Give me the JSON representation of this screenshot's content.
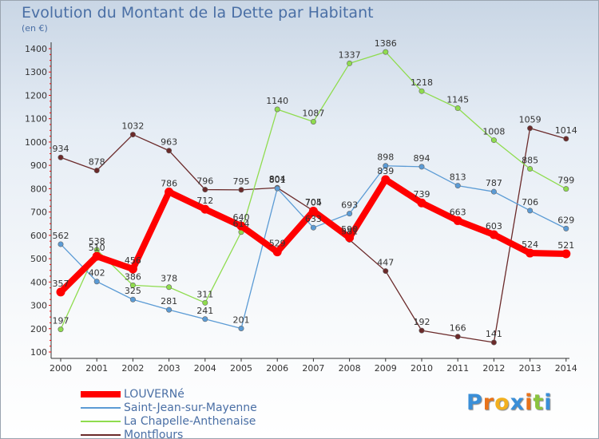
{
  "header": {
    "title": "Evolution du Montant de la Dette par Habitant",
    "subtitle": "(en €)"
  },
  "legend": [
    {
      "label": "LOUVERNé",
      "color": "#ff0000"
    },
    {
      "label": "Saint-Jean-sur-Mayenne",
      "color": "#5b9bd5"
    },
    {
      "label": "La Chapelle-Anthenaise",
      "color": "#8fdc4e"
    },
    {
      "label": "Montflours",
      "color": "#6b2a2a"
    }
  ],
  "logo": {
    "text": "Proxiti"
  },
  "chart_data": {
    "type": "line",
    "title": "Evolution du Montant de la Dette par Habitant",
    "ylabel": "(en €)",
    "xlabel": "",
    "categories": [
      "2000",
      "2001",
      "2002",
      "2003",
      "2004",
      "2005",
      "2006",
      "2007",
      "2008",
      "2009",
      "2010",
      "2011",
      "2012",
      "2013",
      "2014"
    ],
    "ylim": [
      100,
      1400
    ],
    "yticks": [
      100,
      200,
      300,
      400,
      500,
      600,
      700,
      800,
      900,
      1000,
      1100,
      1200,
      1300,
      1400
    ],
    "grid": false,
    "legend_position": "bottom",
    "series": [
      {
        "name": "LOUVERNé",
        "color": "#ff0000",
        "values": [
          357,
          510,
          456,
          786,
          712,
          640,
          529,
          704,
          590,
          839,
          739,
          663,
          603,
          524,
          521
        ]
      },
      {
        "name": "Saint-Jean-sur-Mayenne",
        "color": "#5b9bd5",
        "values": [
          562,
          402,
          325,
          281,
          241,
          201,
          801,
          633,
          693,
          898,
          894,
          813,
          787,
          706,
          629
        ]
      },
      {
        "name": "La Chapelle-Anthenaise",
        "color": "#8fdc4e",
        "values": [
          197,
          538,
          386,
          378,
          311,
          614,
          1140,
          1087,
          1337,
          1386,
          1218,
          1145,
          1008,
          885,
          799
        ]
      },
      {
        "name": "Montflours",
        "color": "#6b2a2a",
        "values": [
          934,
          878,
          1032,
          963,
          796,
          795,
          804,
          705,
          581,
          447,
          192,
          166,
          141,
          1059,
          1014
        ]
      }
    ]
  }
}
